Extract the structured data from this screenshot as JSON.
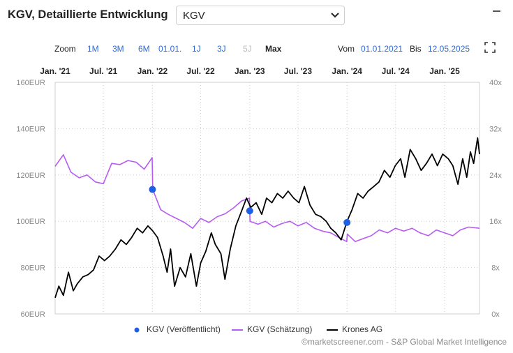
{
  "header": {
    "title": "KGV, Detaillierte Entwicklung",
    "select_value": "KGV"
  },
  "zoom": {
    "label": "Zoom",
    "buttons": [
      "1M",
      "3M",
      "6M",
      "01.01.",
      "1J",
      "3J",
      "5J",
      "Max"
    ],
    "disabled": "5J",
    "active": "Max"
  },
  "range": {
    "from_label": "Vom",
    "from_value": "01.01.2021",
    "to_label": "Bis",
    "to_value": "12.05.2025"
  },
  "footer": "©marketscreener.com - S&P Global Market Intelligence",
  "colors": {
    "published": "#1f5fe6",
    "estimate": "#b65cf2",
    "price": "#000000",
    "grid": "#cccccc",
    "link": "#2f6bd6"
  },
  "chart_data": {
    "type": "line",
    "x_range": [
      "2021-01-01",
      "2025-05-12"
    ],
    "top_ticks": [
      "Jan. '21",
      "Jul. '21",
      "Jan. '22",
      "Jul. '22",
      "Jan. '23",
      "Jul. '23",
      "Jan. '24",
      "Jul. '24",
      "Jan. '25"
    ],
    "y_left": {
      "ticks": [
        "60EUR",
        "80EUR",
        "100EUR",
        "120EUR",
        "140EUR",
        "160EUR"
      ],
      "range": [
        60,
        160
      ]
    },
    "y_right": {
      "ticks": [
        "0x",
        "8x",
        "16x",
        "24x",
        "32x",
        "40x"
      ],
      "range": [
        0,
        40
      ]
    },
    "grid": true,
    "legend_position": "bottom",
    "series": [
      {
        "name": "KGV (Veröffentlicht)",
        "axis": "right",
        "style": "points",
        "x": [
          "2022-01-01",
          "2023-01-01",
          "2024-01-01"
        ],
        "y": [
          21.5,
          17.8,
          15.8
        ]
      },
      {
        "name": "KGV (Schätzung)",
        "axis": "right",
        "style": "line",
        "x": [
          "2021-01-01",
          "2021-02-01",
          "2021-03-01",
          "2021-04-01",
          "2021-05-01",
          "2021-06-01",
          "2021-07-01",
          "2021-08-01",
          "2021-09-01",
          "2021-10-01",
          "2021-11-01",
          "2021-12-01",
          "2021-12-31",
          "2022-01-02",
          "2022-02-01",
          "2022-03-01",
          "2022-04-01",
          "2022-05-01",
          "2022-06-01",
          "2022-07-01",
          "2022-08-01",
          "2022-09-01",
          "2022-10-01",
          "2022-11-01",
          "2022-12-01",
          "2022-12-31",
          "2023-01-02",
          "2023-02-01",
          "2023-03-01",
          "2023-04-01",
          "2023-05-01",
          "2023-06-01",
          "2023-07-01",
          "2023-08-01",
          "2023-09-01",
          "2023-10-01",
          "2023-11-01",
          "2023-12-01",
          "2023-12-31",
          "2024-01-02",
          "2024-02-01",
          "2024-03-01",
          "2024-04-01",
          "2024-05-01",
          "2024-06-01",
          "2024-07-01",
          "2024-08-01",
          "2024-09-01",
          "2024-10-01",
          "2024-11-01",
          "2024-12-01",
          "2025-01-01",
          "2025-02-01",
          "2025-03-01",
          "2025-04-01",
          "2025-05-12"
        ],
        "y": [
          25.5,
          27.5,
          24.5,
          23.5,
          24.0,
          22.8,
          22.5,
          26.0,
          25.8,
          26.5,
          26.2,
          25.0,
          27.0,
          21.5,
          18.0,
          17.2,
          16.5,
          15.8,
          14.8,
          16.5,
          15.8,
          16.8,
          17.3,
          18.3,
          19.5,
          20.0,
          16.0,
          15.5,
          16.0,
          15.0,
          15.6,
          16.0,
          15.2,
          15.8,
          14.8,
          14.3,
          14.0,
          13.2,
          12.5,
          13.8,
          12.5,
          13.0,
          13.5,
          14.5,
          14.0,
          14.8,
          14.3,
          14.8,
          14.0,
          13.5,
          14.5,
          14.0,
          13.5,
          14.5,
          15.0,
          14.8
        ]
      },
      {
        "name": "Krones AG",
        "axis": "left",
        "style": "line",
        "x": [
          "2021-01-01",
          "2021-01-15",
          "2021-02-01",
          "2021-02-20",
          "2021-03-10",
          "2021-03-25",
          "2021-04-15",
          "2021-05-05",
          "2021-05-25",
          "2021-06-15",
          "2021-07-05",
          "2021-07-25",
          "2021-08-15",
          "2021-09-05",
          "2021-09-25",
          "2021-10-15",
          "2021-11-05",
          "2021-11-25",
          "2021-12-15",
          "2022-01-01",
          "2022-01-20",
          "2022-02-10",
          "2022-02-25",
          "2022-03-10",
          "2022-03-25",
          "2022-04-15",
          "2022-05-05",
          "2022-05-25",
          "2022-06-15",
          "2022-07-01",
          "2022-07-20",
          "2022-08-10",
          "2022-08-25",
          "2022-09-15",
          "2022-09-30",
          "2022-10-20",
          "2022-11-10",
          "2022-11-30",
          "2022-12-20",
          "2023-01-05",
          "2023-01-25",
          "2023-02-15",
          "2023-03-05",
          "2023-03-25",
          "2023-04-15",
          "2023-05-05",
          "2023-05-25",
          "2023-06-15",
          "2023-07-05",
          "2023-07-25",
          "2023-08-15",
          "2023-09-05",
          "2023-09-25",
          "2023-10-15",
          "2023-11-01",
          "2023-11-20",
          "2023-12-10",
          "2024-01-01",
          "2024-01-20",
          "2024-02-10",
          "2024-03-01",
          "2024-03-20",
          "2024-04-10",
          "2024-04-30",
          "2024-05-20",
          "2024-06-10",
          "2024-06-30",
          "2024-07-20",
          "2024-08-05",
          "2024-08-25",
          "2024-09-15",
          "2024-10-05",
          "2024-10-25",
          "2024-11-15",
          "2024-12-05",
          "2024-12-25",
          "2025-01-15",
          "2025-02-01",
          "2025-02-20",
          "2025-03-10",
          "2025-03-25",
          "2025-04-08",
          "2025-04-20",
          "2025-05-05",
          "2025-05-12"
        ],
        "y": [
          67,
          72,
          68,
          78,
          70,
          73,
          76,
          77,
          79,
          85,
          83,
          85,
          88,
          92,
          90,
          93,
          97,
          95,
          98,
          96,
          93,
          85,
          78,
          88,
          72,
          80,
          76,
          86,
          72,
          82,
          87,
          95,
          90,
          86,
          75,
          88,
          98,
          104,
          110,
          106,
          108,
          103,
          110,
          108,
          112,
          110,
          113,
          110,
          108,
          115,
          107,
          103,
          102,
          100,
          97,
          95,
          92,
          100,
          105,
          112,
          110,
          113,
          115,
          117,
          122,
          119,
          124,
          127,
          119,
          131,
          127,
          122,
          125,
          129,
          124,
          129,
          127,
          124,
          116,
          127,
          119,
          130,
          125,
          136,
          129
        ]
      }
    ]
  }
}
